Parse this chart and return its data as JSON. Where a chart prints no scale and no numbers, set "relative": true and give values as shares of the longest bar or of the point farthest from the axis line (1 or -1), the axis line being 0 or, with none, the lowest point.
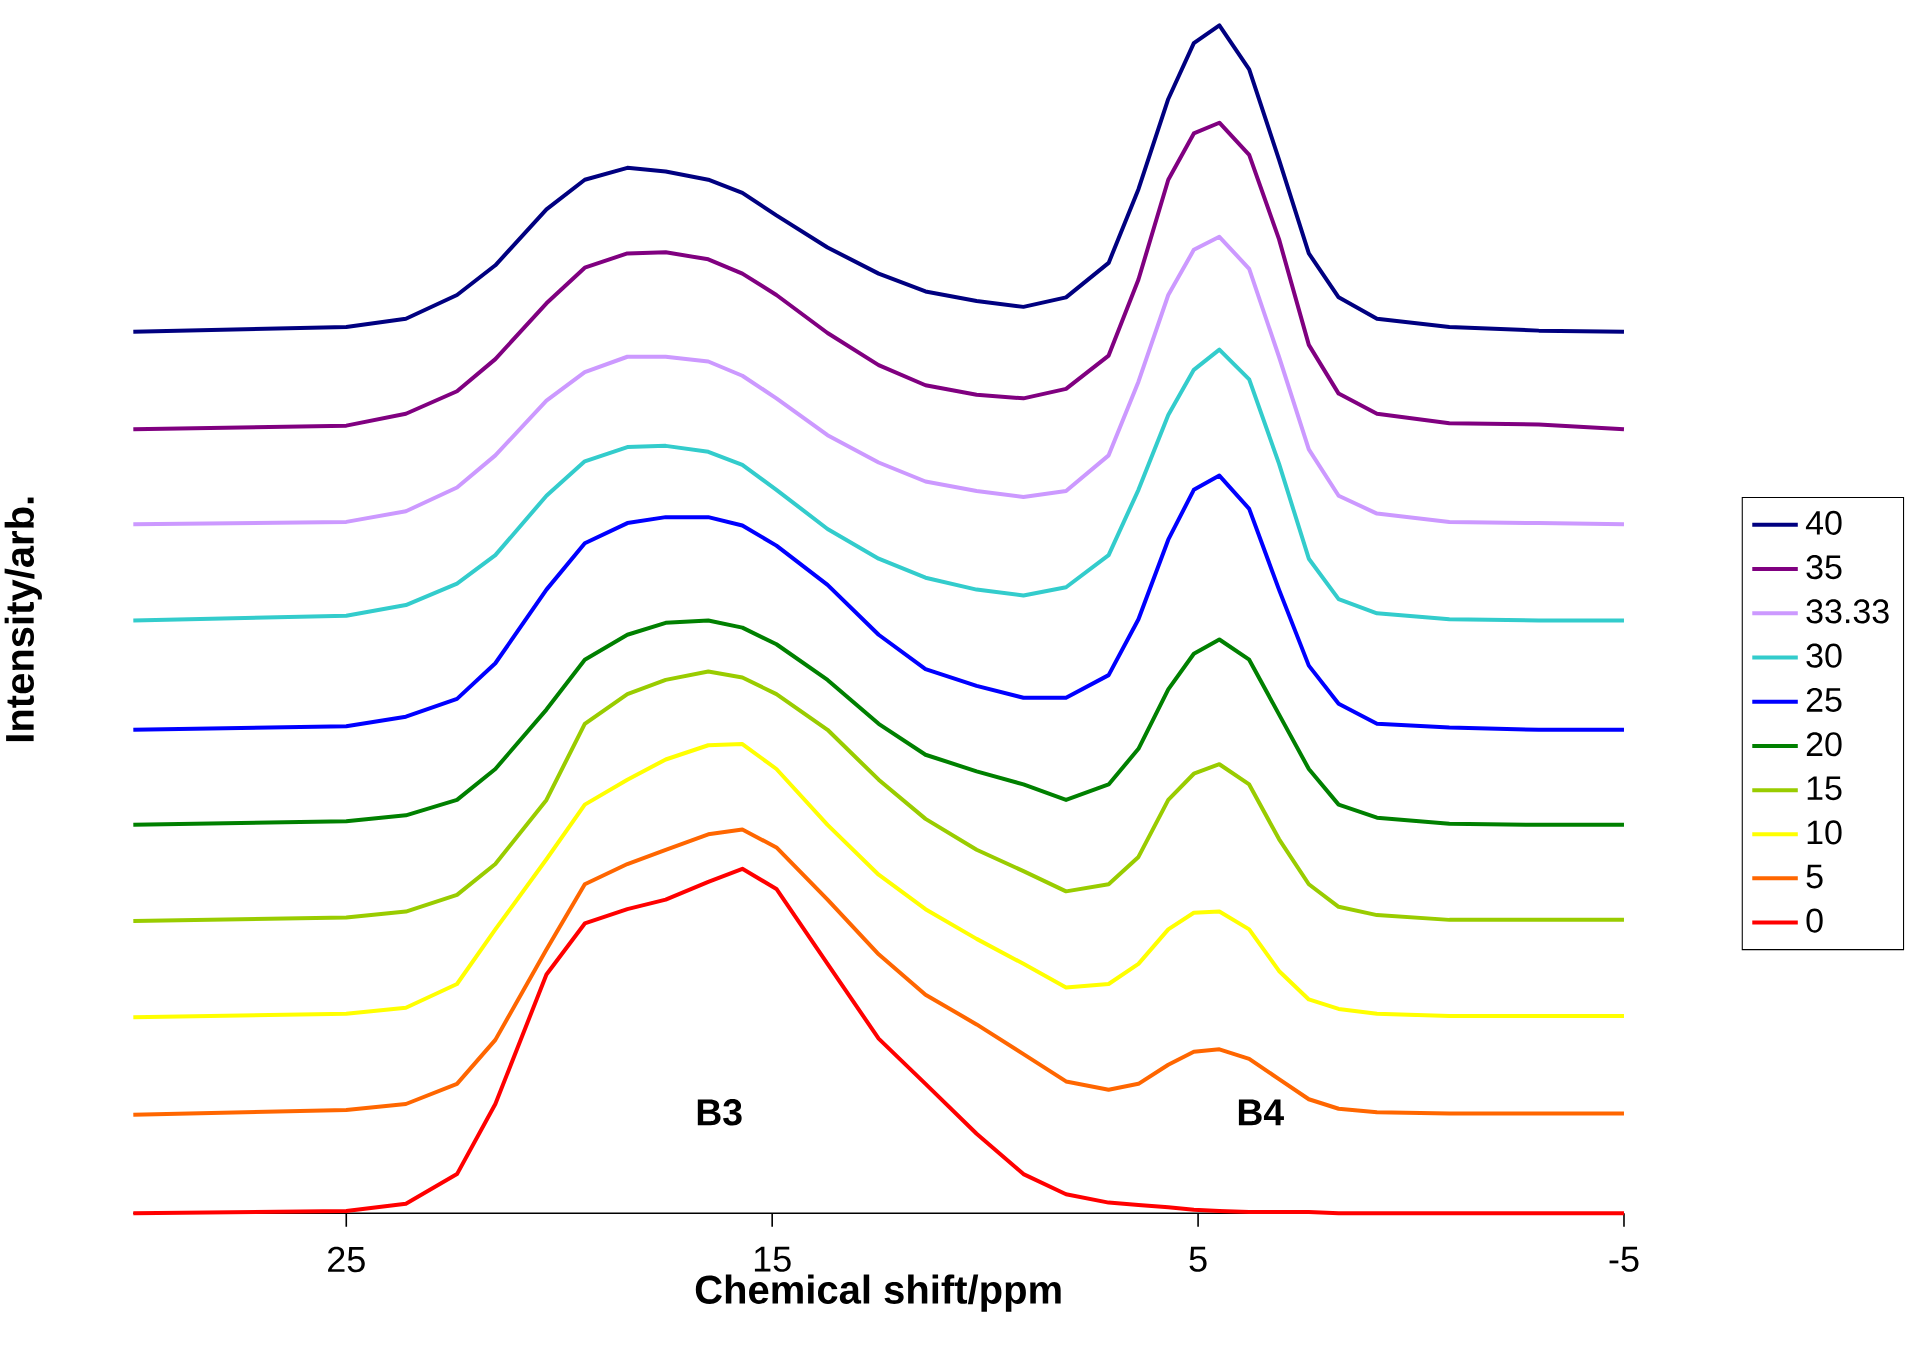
{
  "chart_data": {
    "type": "line",
    "relative": true,
    "xlabel": "Chemical shift/ppm",
    "ylabel": "Intensity/arb.",
    "xlim": [
      30,
      -5
    ],
    "xticks": [
      25,
      15,
      5,
      -5
    ],
    "legend": "right",
    "x": [
      30,
      25.0,
      23.6,
      22.4,
      21.5,
      20.3,
      19.4,
      18.4,
      17.5,
      16.5,
      15.7,
      14.9,
      13.7,
      12.5,
      11.4,
      10.2,
      9.1,
      8.1,
      7.1,
      6.4,
      5.7,
      5.1,
      4.5,
      3.8,
      3.1,
      2.4,
      1.7,
      0.8,
      -0.9,
      -3,
      -5
    ],
    "annotations": [
      "B3",
      "B4"
    ],
    "series": [
      {
        "name": "40",
        "color": "#000080",
        "values": [
          0.742,
          0.746,
          0.753,
          0.773,
          0.798,
          0.845,
          0.87,
          0.88,
          0.877,
          0.87,
          0.859,
          0.84,
          0.813,
          0.791,
          0.776,
          0.768,
          0.763,
          0.771,
          0.8,
          0.862,
          0.938,
          0.985,
          1,
          0.963,
          0.887,
          0.808,
          0.771,
          0.753,
          0.746,
          0.743,
          0.742
        ]
      },
      {
        "name": "35",
        "color": "#800080",
        "values": [
          0.66,
          0.663,
          0.673,
          0.692,
          0.719,
          0.766,
          0.796,
          0.808,
          0.809,
          0.803,
          0.791,
          0.773,
          0.741,
          0.714,
          0.697,
          0.689,
          0.686,
          0.694,
          0.722,
          0.786,
          0.87,
          0.909,
          0.918,
          0.891,
          0.82,
          0.731,
          0.69,
          0.673,
          0.665,
          0.664,
          0.66
        ]
      },
      {
        "name": "33.33",
        "color": "#cc99ff",
        "values": [
          0.58,
          0.582,
          0.591,
          0.611,
          0.638,
          0.684,
          0.708,
          0.721,
          0.721,
          0.717,
          0.705,
          0.686,
          0.655,
          0.632,
          0.616,
          0.608,
          0.603,
          0.608,
          0.638,
          0.7,
          0.773,
          0.811,
          0.822,
          0.795,
          0.721,
          0.643,
          0.604,
          0.589,
          0.582,
          0.581,
          0.58
        ]
      },
      {
        "name": "30",
        "color": "#33cccc",
        "values": [
          0.499,
          0.503,
          0.512,
          0.53,
          0.554,
          0.604,
          0.633,
          0.645,
          0.646,
          0.641,
          0.63,
          0.609,
          0.576,
          0.551,
          0.535,
          0.525,
          0.52,
          0.527,
          0.554,
          0.609,
          0.672,
          0.71,
          0.727,
          0.702,
          0.631,
          0.551,
          0.517,
          0.505,
          0.5,
          0.499,
          0.499
        ]
      },
      {
        "name": "25",
        "color": "#0000ff",
        "values": [
          0.407,
          0.41,
          0.418,
          0.433,
          0.463,
          0.525,
          0.564,
          0.581,
          0.586,
          0.586,
          0.579,
          0.562,
          0.529,
          0.487,
          0.458,
          0.444,
          0.434,
          0.434,
          0.453,
          0.5,
          0.567,
          0.609,
          0.621,
          0.593,
          0.525,
          0.461,
          0.429,
          0.412,
          0.409,
          0.407,
          0.407
        ]
      },
      {
        "name": "20",
        "color": "#008000",
        "values": [
          0.327,
          0.33,
          0.335,
          0.348,
          0.374,
          0.424,
          0.466,
          0.487,
          0.497,
          0.499,
          0.493,
          0.479,
          0.449,
          0.412,
          0.386,
          0.372,
          0.361,
          0.348,
          0.361,
          0.391,
          0.441,
          0.471,
          0.483,
          0.466,
          0.42,
          0.374,
          0.344,
          0.333,
          0.328,
          0.327,
          0.327
        ]
      },
      {
        "name": "15",
        "color": "#99cc00",
        "values": [
          0.246,
          0.249,
          0.254,
          0.268,
          0.294,
          0.348,
          0.412,
          0.437,
          0.449,
          0.456,
          0.451,
          0.437,
          0.407,
          0.365,
          0.332,
          0.306,
          0.288,
          0.271,
          0.277,
          0.3,
          0.348,
          0.37,
          0.378,
          0.361,
          0.315,
          0.277,
          0.258,
          0.251,
          0.247,
          0.247,
          0.247
        ]
      },
      {
        "name": "10",
        "color": "#ffff00",
        "values": [
          0.165,
          0.168,
          0.173,
          0.193,
          0.239,
          0.298,
          0.344,
          0.365,
          0.382,
          0.394,
          0.395,
          0.374,
          0.327,
          0.285,
          0.256,
          0.231,
          0.21,
          0.19,
          0.193,
          0.21,
          0.239,
          0.253,
          0.254,
          0.239,
          0.204,
          0.18,
          0.172,
          0.168,
          0.166,
          0.166,
          0.166
        ]
      },
      {
        "name": "5",
        "color": "#ff6600",
        "values": [
          0.083,
          0.087,
          0.092,
          0.109,
          0.146,
          0.222,
          0.277,
          0.294,
          0.306,
          0.319,
          0.323,
          0.308,
          0.264,
          0.218,
          0.184,
          0.159,
          0.134,
          0.111,
          0.104,
          0.109,
          0.125,
          0.136,
          0.138,
          0.13,
          0.113,
          0.096,
          0.088,
          0.085,
          0.084,
          0.084,
          0.084
        ]
      },
      {
        "name": "0",
        "color": "#ff0000",
        "values": [
          0,
          0.002,
          0.008,
          0.033,
          0.092,
          0.201,
          0.244,
          0.256,
          0.264,
          0.279,
          0.29,
          0.273,
          0.21,
          0.147,
          0.109,
          0.067,
          0.033,
          0.016,
          0.009,
          0.007,
          0.005,
          0.003,
          0.002,
          0.001,
          0.001,
          0.001,
          0,
          0,
          0,
          0,
          0
        ]
      }
    ]
  }
}
